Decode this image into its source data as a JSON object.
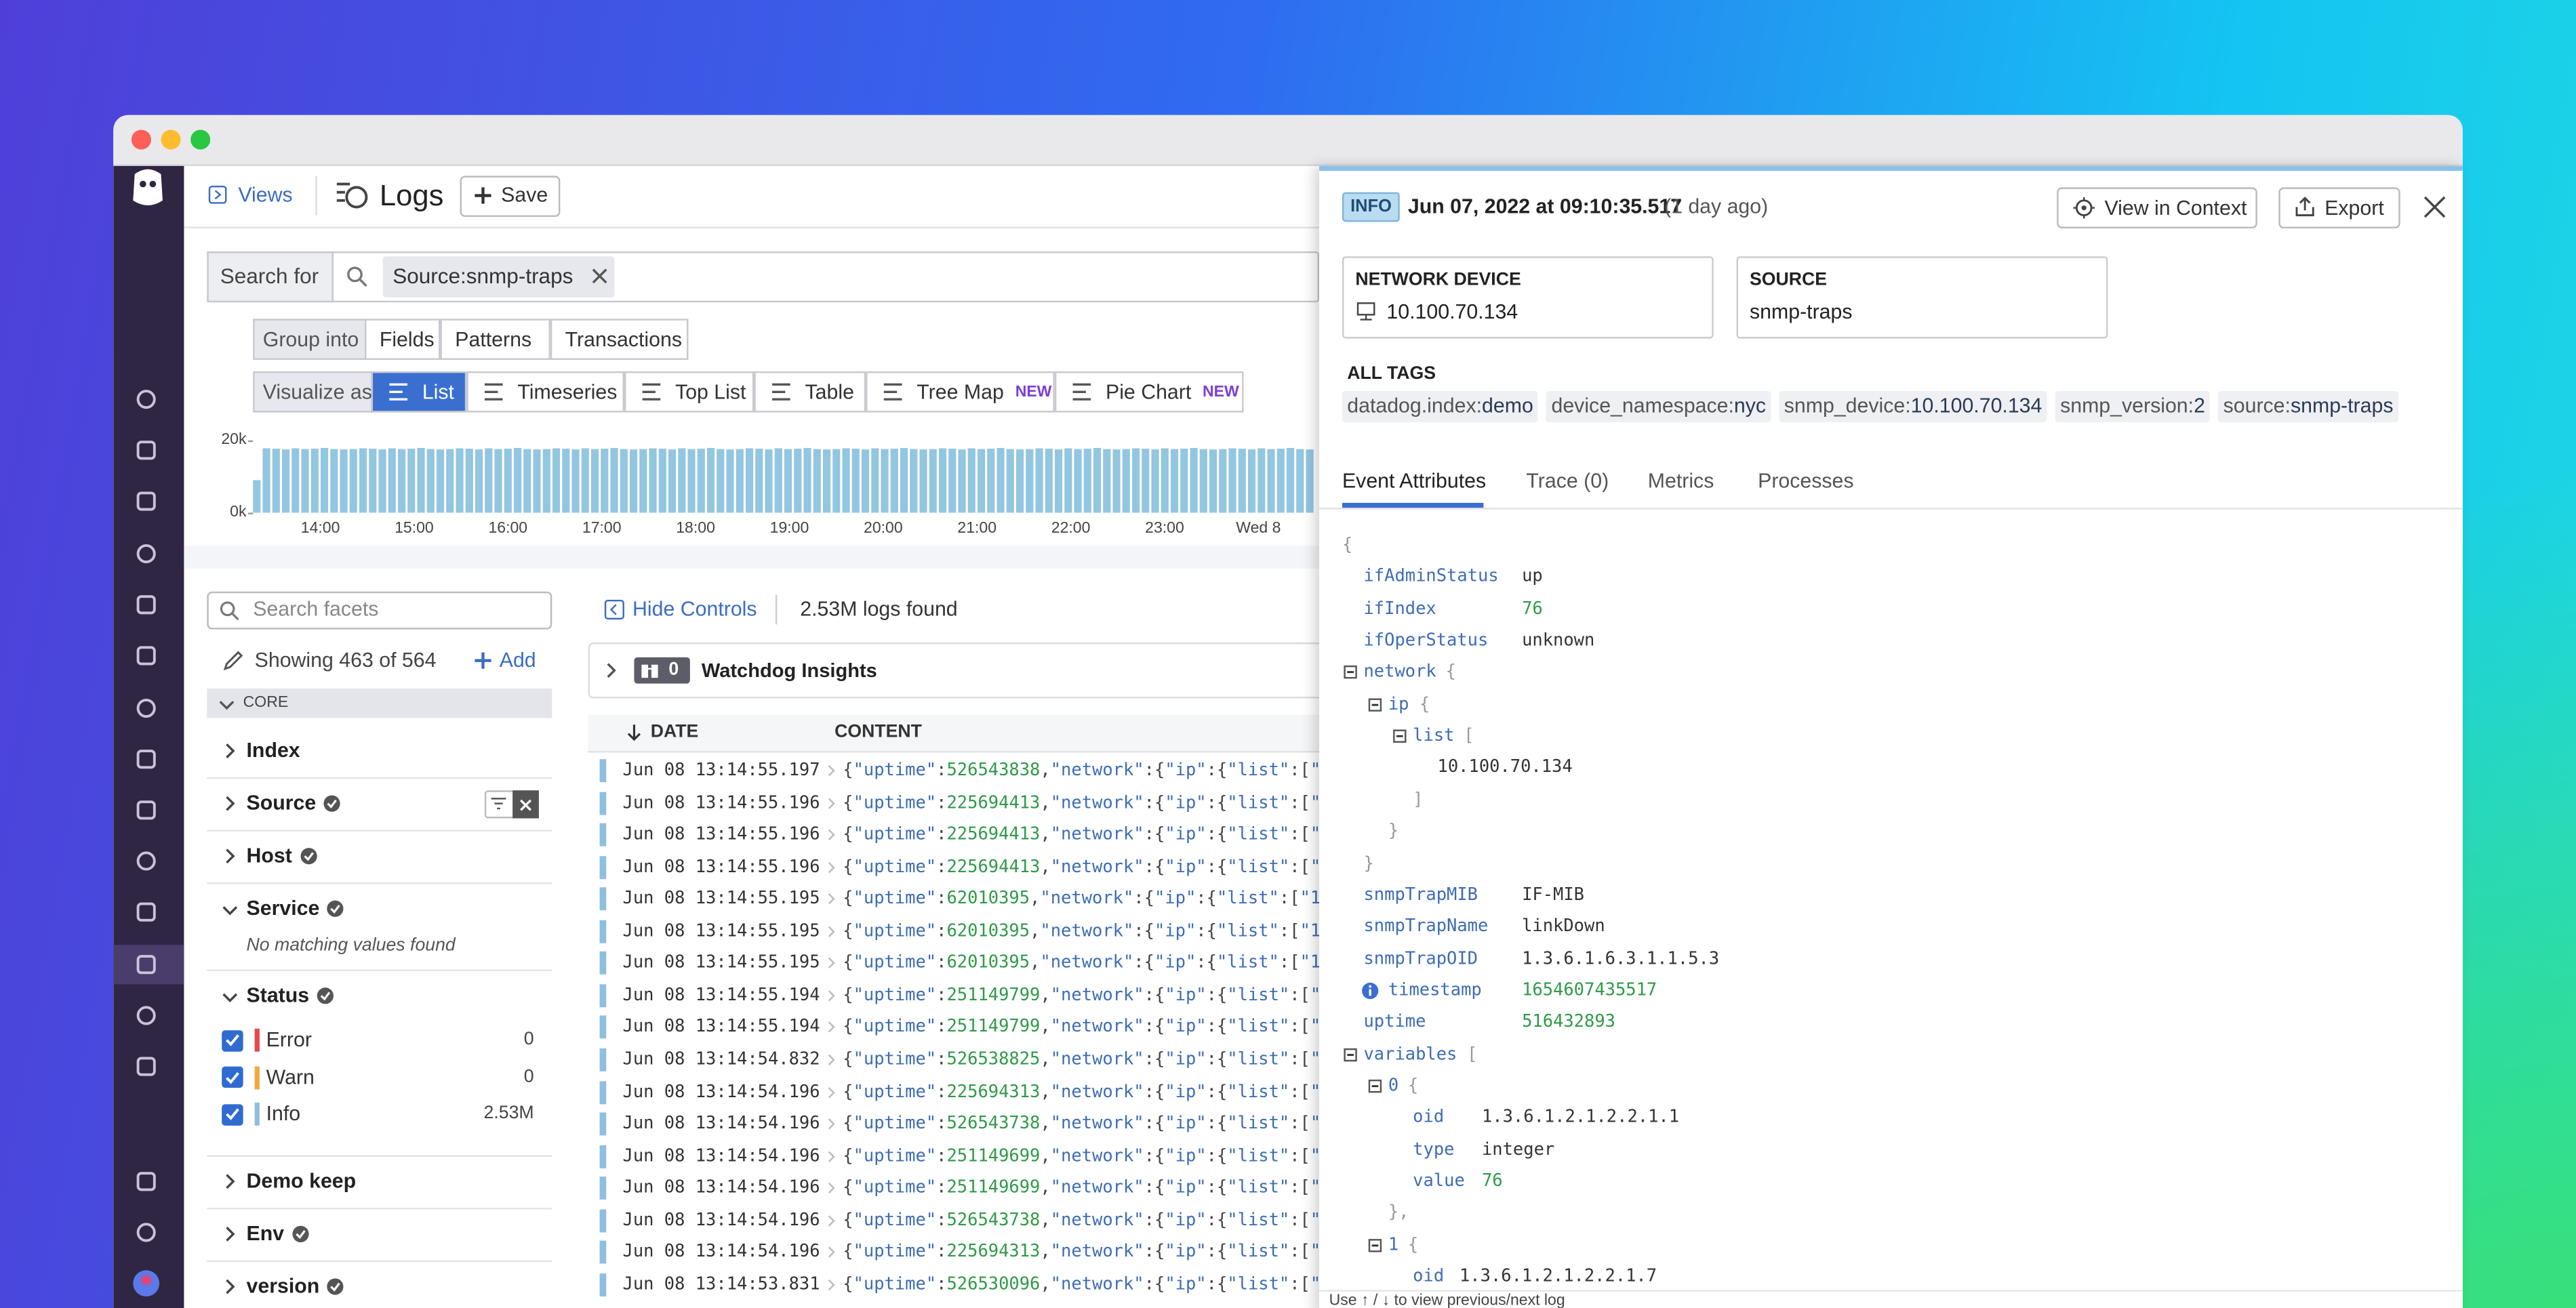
{
  "header": {
    "views": "Views",
    "title": "Logs",
    "save": "Save"
  },
  "search": {
    "label": "Search for",
    "query": "Source:snmp-traps"
  },
  "group_into": {
    "label": "Group into",
    "options": [
      "Fields",
      "Patterns",
      "Transactions"
    ]
  },
  "visualize": {
    "label": "Visualize as",
    "options": [
      {
        "label": "List",
        "selected": true
      },
      {
        "label": "Timeseries"
      },
      {
        "label": "Top List"
      },
      {
        "label": "Table"
      },
      {
        "label": "Tree Map",
        "badge": "NEW"
      },
      {
        "label": "Pie Chart",
        "badge": "NEW"
      }
    ]
  },
  "histogram": {
    "ylim": [
      0,
      20000
    ],
    "yticks": [
      {
        "value": 20000,
        "label": "20k"
      },
      {
        "value": 0,
        "label": "0k"
      }
    ],
    "color": "#93c6e0",
    "x_labels": [
      "14:00",
      "15:00",
      "16:00",
      "17:00",
      "18:00",
      "19:00",
      "20:00",
      "21:00",
      "22:00",
      "23:00",
      "Wed 8"
    ],
    "values": [
      9000,
      17800,
      17700,
      17500,
      17800,
      17600,
      17700,
      17900,
      17600,
      17500,
      17600,
      17800,
      17700,
      17500,
      17800,
      17600,
      17700,
      17900,
      17600,
      17500,
      17600,
      17800,
      17700,
      17500,
      17800,
      17600,
      17700,
      17900,
      17600,
      17500,
      17600,
      17800,
      17700,
      17500,
      17800,
      17600,
      17700,
      17900,
      17600,
      17500,
      17600,
      17800,
      17700,
      17500,
      17800,
      17600,
      17700,
      17900,
      17600,
      17500,
      17600,
      17800,
      17700,
      17500,
      17800,
      17600,
      17700,
      17900,
      17600,
      17500,
      17600,
      17800,
      17700,
      17500,
      17800,
      17600,
      17700,
      17900,
      17600,
      17500,
      17600,
      17800,
      17700,
      17500,
      17800,
      17600,
      17700,
      17900,
      17600,
      17500,
      17600,
      17800,
      17700,
      17500,
      17800,
      17600,
      17700,
      17900,
      17600,
      17500,
      17600,
      17800,
      17700,
      17500,
      17800,
      17600,
      17700,
      17900,
      17600,
      17500,
      17600,
      17800,
      17700,
      17500,
      17800,
      17600,
      17700,
      17900,
      17600,
      17500
    ]
  },
  "facets": {
    "search_placeholder": "Search facets",
    "showing": "Showing 463 of 564",
    "add": "Add",
    "section": "CORE",
    "groups": [
      {
        "name": "Index"
      },
      {
        "name": "Source",
        "verified": true
      },
      {
        "name": "Host",
        "verified": true
      },
      {
        "name": "Service",
        "verified": true,
        "expanded": true,
        "empty": "No matching values found"
      },
      {
        "name": "Status",
        "verified": true,
        "expanded": true,
        "items": [
          {
            "label": "Error",
            "count": 0,
            "color": "#e5484d"
          },
          {
            "label": "Warn",
            "count": 0,
            "color": "#f2a93b"
          },
          {
            "label": "Info",
            "count": "2.53M",
            "color": "#8fbfe0"
          }
        ]
      },
      {
        "name": "Demo keep"
      },
      {
        "name": "Env",
        "verified": true
      },
      {
        "name": "version",
        "verified": true
      }
    ]
  },
  "logs": {
    "hide_controls": "Hide Controls",
    "found": "2.53M logs found",
    "watchdog_count": 0,
    "watchdog": "Watchdog Insights",
    "columns": [
      "DATE",
      "CONTENT"
    ],
    "rows": [
      {
        "date": "Jun 08 13:14:55.197",
        "content": "{\"uptime\":526543838,\"network\":{\"ip\":{\"list\":[\"1"
      },
      {
        "date": "Jun 08 13:14:55.196",
        "content": "{\"uptime\":225694413,\"network\":{\"ip\":{\"list\":[\"1"
      },
      {
        "date": "Jun 08 13:14:55.196",
        "content": "{\"uptime\":225694413,\"network\":{\"ip\":{\"list\":[\"1"
      },
      {
        "date": "Jun 08 13:14:55.196",
        "content": "{\"uptime\":225694413,\"network\":{\"ip\":{\"list\":[\"1"
      },
      {
        "date": "Jun 08 13:14:55.195",
        "content": "{\"uptime\":62010395,\"network\":{\"ip\":{\"list\":[\"10"
      },
      {
        "date": "Jun 08 13:14:55.195",
        "content": "{\"uptime\":62010395,\"network\":{\"ip\":{\"list\":[\"1"
      },
      {
        "date": "Jun 08 13:14:55.195",
        "content": "{\"uptime\":62010395,\"network\":{\"ip\":{\"list\":[\"10"
      },
      {
        "date": "Jun 08 13:14:55.194",
        "content": "{\"uptime\":251149799,\"network\":{\"ip\":{\"list\":[\"1"
      },
      {
        "date": "Jun 08 13:14:55.194",
        "content": "{\"uptime\":251149799,\"network\":{\"ip\":{\"list\":[\"1"
      },
      {
        "date": "Jun 08 13:14:54.832",
        "content": "{\"uptime\":526538825,\"network\":{\"ip\":{\"list\":[\"1"
      },
      {
        "date": "Jun 08 13:14:54.196",
        "content": "{\"uptime\":225694313,\"network\":{\"ip\":{\"list\":[\"1"
      },
      {
        "date": "Jun 08 13:14:54.196",
        "content": "{\"uptime\":526543738,\"network\":{\"ip\":{\"list\":[\"1"
      },
      {
        "date": "Jun 08 13:14:54.196",
        "content": "{\"uptime\":251149699,\"network\":{\"ip\":{\"list\":[\"1"
      },
      {
        "date": "Jun 08 13:14:54.196",
        "content": "{\"uptime\":251149699,\"network\":{\"ip\":{\"list\":[\"1"
      },
      {
        "date": "Jun 08 13:14:54.196",
        "content": "{\"uptime\":526543738,\"network\":{\"ip\":{\"list\":[\"1"
      },
      {
        "date": "Jun 08 13:14:54.196",
        "content": "{\"uptime\":225694313,\"network\":{\"ip\":{\"list\":[\"1"
      },
      {
        "date": "Jun 08 13:14:53.831",
        "content": "{\"uptime\":526530096,\"network\":{\"ip\":{\"list\":[\"1"
      }
    ]
  },
  "panel": {
    "status": "INFO",
    "timestamp": "Jun 07, 2022 at 09:10:35.517",
    "relative": "(1 day ago)",
    "view_context": "View in Context",
    "export": "Export",
    "cards": [
      {
        "label": "NETWORK DEVICE",
        "value": "10.100.70.134"
      },
      {
        "label": "SOURCE",
        "value": "snmp-traps"
      }
    ],
    "tags_label": "ALL TAGS",
    "tags": [
      {
        "key": "datadog.index:",
        "value": "demo"
      },
      {
        "key": "device_namespace:",
        "value": "nyc"
      },
      {
        "key": "snmp_device:",
        "value": "10.100.70.134"
      },
      {
        "key": "snmp_version:",
        "value": "2"
      },
      {
        "key": "source:",
        "value": "snmp-traps"
      }
    ],
    "tabs": [
      "Event Attributes",
      "Trace (0)",
      "Metrics",
      "Processes"
    ],
    "attributes": {
      "open": "{",
      "children": [
        {
          "key": "ifAdminStatus",
          "value": "up"
        },
        {
          "key": "ifIndex",
          "value": 76
        },
        {
          "key": "ifOperStatus",
          "value": "unknown"
        },
        {
          "key": "network",
          "open": "{",
          "close": "}",
          "children": [
            {
              "key": "ip",
              "open": "{",
              "close": "}",
              "children": [
                {
                  "key": "list",
                  "open": "[",
                  "close": "]",
                  "children": [
                    {
                      "value": "10.100.70.134"
                    }
                  ]
                }
              ]
            }
          ]
        },
        {
          "key": "snmpTrapMIB",
          "value": "IF-MIB"
        },
        {
          "key": "snmpTrapName",
          "value": "linkDown"
        },
        {
          "key": "snmpTrapOID",
          "value": "1.3.6.1.6.3.1.1.5.3"
        },
        {
          "key": "timestamp",
          "value": 1654607435517,
          "icon": "info"
        },
        {
          "key": "uptime",
          "value": 516432893
        },
        {
          "key": "variables",
          "open": "[",
          "children": [
            {
              "key": "0",
              "open": "{",
              "close": "},",
              "children": [
                {
                  "key": "oid",
                  "value": "1.3.6.1.2.1.2.2.1.1"
                },
                {
                  "key": "type",
                  "value": "integer"
                },
                {
                  "key": "value",
                  "value": 76
                }
              ]
            },
            {
              "key": "1",
              "open": "{",
              "children": [
                {
                  "key": "oid",
                  "value": "1.3.6.1.2.1.2.2.1.7"
                }
              ]
            }
          ]
        }
      ]
    },
    "footer_hint": "Use ↑ / ↓ to view previous/next log"
  }
}
